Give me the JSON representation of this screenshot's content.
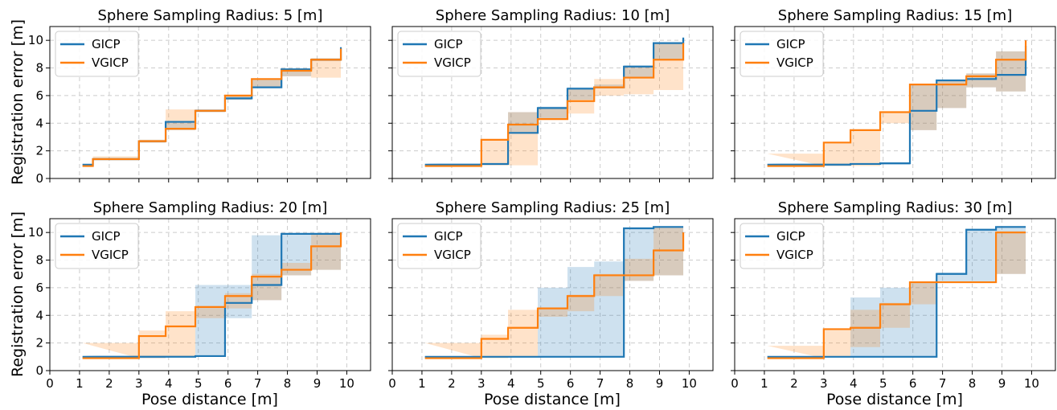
{
  "figure": {
    "ylabel": "Registration error [m]",
    "xlabel": "Pose distance [m]",
    "colors": {
      "GICP": "#1f77b4",
      "VGICP": "#ff7f0e"
    },
    "x_ticks": [
      "0",
      "1",
      "2",
      "3",
      "4",
      "5",
      "6",
      "7",
      "8",
      "9",
      "10"
    ],
    "y_ticks": [
      "0",
      "2",
      "4",
      "6",
      "8",
      "10"
    ],
    "xlim": [
      0,
      10.8
    ],
    "ylim": [
      0,
      11
    ],
    "grid": true,
    "legend_placement": "top-left"
  },
  "chart_data": [
    {
      "type": "line",
      "title": "Sphere Sampling Radius: 5 [m]",
      "steps": [
        1.1,
        1.45,
        2,
        3,
        3.9,
        4.9,
        5.9,
        6.8,
        7.8,
        8.8,
        9.8
      ],
      "series": [
        {
          "name": "GICP",
          "values": [
            1.0,
            1.4,
            1.4,
            2.7,
            4.1,
            4.9,
            5.8,
            6.6,
            7.9,
            8.6,
            9.5
          ],
          "lower": [
            0.9,
            1.3,
            1.3,
            2.6,
            3.5,
            4.8,
            5.7,
            6.6,
            7.4,
            8.5,
            9.4
          ],
          "upper": [
            1.0,
            1.5,
            1.5,
            2.8,
            4.1,
            5.0,
            6.0,
            7.2,
            7.9,
            8.7,
            9.5
          ]
        },
        {
          "name": "VGICP",
          "values": [
            0.9,
            1.4,
            1.4,
            2.7,
            3.6,
            4.9,
            6.0,
            7.2,
            7.8,
            8.6,
            9.4
          ],
          "lower": [
            0.9,
            1.3,
            1.3,
            2.6,
            3.5,
            4.8,
            5.7,
            6.6,
            7.4,
            7.3,
            7.3
          ],
          "upper": [
            1.0,
            1.6,
            1.6,
            2.8,
            5.0,
            5.0,
            6.0,
            7.2,
            7.9,
            8.7,
            9.5
          ]
        }
      ]
    },
    {
      "type": "line",
      "title": "Sphere Sampling Radius: 10 [m]",
      "steps": [
        1.1,
        3,
        3.9,
        4.9,
        5.9,
        6.8,
        7.8,
        8.8,
        9.8
      ],
      "series": [
        {
          "name": "GICP",
          "values": [
            1.0,
            1.05,
            3.3,
            5.1,
            6.5,
            6.6,
            8.1,
            9.8,
            10.2
          ],
          "lower": [
            0.9,
            0.95,
            3.3,
            4.3,
            5.7,
            6.6,
            7.3,
            8.6,
            9.8
          ],
          "upper": [
            1.1,
            1.1,
            4.8,
            5.2,
            6.6,
            6.8,
            8.2,
            9.8,
            10.3
          ]
        },
        {
          "name": "VGICP",
          "values": [
            0.9,
            2.8,
            3.9,
            4.3,
            5.6,
            6.6,
            7.3,
            8.6,
            9.8
          ],
          "lower": [
            0.9,
            0.95,
            0.95,
            4.3,
            4.7,
            6.0,
            6.1,
            6.4,
            6.8
          ],
          "upper": [
            1.0,
            2.8,
            4.8,
            5.1,
            6.5,
            7.2,
            8.1,
            9.8,
            10.3
          ]
        }
      ]
    },
    {
      "type": "line",
      "title": "Sphere Sampling Radius: 15 [m]",
      "steps": [
        1.1,
        3,
        3.9,
        4.9,
        5.9,
        6.8,
        7.8,
        8.8,
        9.8
      ],
      "series": [
        {
          "name": "GICP",
          "values": [
            1.0,
            1.0,
            1.05,
            1.1,
            4.9,
            7.1,
            7.2,
            7.5,
            9.6
          ],
          "lower": [
            0.9,
            0.9,
            1.0,
            1.0,
            3.5,
            5.1,
            6.6,
            6.3,
            8.6
          ],
          "upper": [
            1.1,
            1.1,
            1.1,
            1.1,
            6.8,
            7.1,
            7.6,
            9.2,
            10.0
          ]
        },
        {
          "name": "VGICP",
          "values": [
            0.9,
            2.6,
            3.5,
            4.8,
            6.8,
            6.8,
            7.4,
            8.6,
            10.0
          ],
          "lower": [
            0.9,
            0.9,
            0.9,
            4.0,
            3.5,
            5.1,
            6.6,
            6.3,
            8.6
          ],
          "upper": [
            1.8,
            2.6,
            3.5,
            4.8,
            6.8,
            7.1,
            7.6,
            9.2,
            10.0
          ]
        }
      ]
    },
    {
      "type": "line",
      "title": "Sphere Sampling Radius: 20 [m]",
      "steps": [
        1.1,
        3,
        3.9,
        4.9,
        5.9,
        6.8,
        7.8,
        8.8,
        9.8
      ],
      "series": [
        {
          "name": "GICP",
          "values": [
            1.0,
            1.0,
            1.0,
            1.05,
            4.9,
            6.2,
            9.9,
            9.9,
            10.0
          ],
          "lower": [
            0.9,
            0.9,
            1.0,
            1.0,
            3.8,
            5.1,
            6.9,
            7.3,
            8.8
          ],
          "upper": [
            1.1,
            1.1,
            1.1,
            6.2,
            6.2,
            9.8,
            9.9,
            9.9,
            10.0
          ]
        },
        {
          "name": "VGICP",
          "values": [
            0.9,
            2.5,
            3.2,
            4.6,
            5.4,
            6.8,
            7.3,
            9.0,
            10.0
          ],
          "lower": [
            0.9,
            0.9,
            1.0,
            3.8,
            4.5,
            5.1,
            6.9,
            7.3,
            8.8
          ],
          "upper": [
            2.0,
            2.9,
            4.3,
            4.7,
            5.6,
            7.0,
            7.8,
            9.9,
            10.0
          ]
        }
      ]
    },
    {
      "type": "line",
      "title": "Sphere Sampling Radius: 25 [m]",
      "steps": [
        1.1,
        3,
        3.9,
        4.9,
        5.9,
        6.8,
        7.8,
        8.8,
        9.8
      ],
      "series": [
        {
          "name": "GICP",
          "values": [
            1.0,
            1.0,
            1.0,
            1.0,
            1.0,
            1.0,
            10.3,
            10.4,
            10.4
          ],
          "lower": [
            1.0,
            1.0,
            1.0,
            1.0,
            1.0,
            1.0,
            6.5,
            6.9,
            6.9
          ],
          "upper": [
            1.0,
            1.0,
            1.0,
            6.0,
            7.5,
            7.9,
            10.3,
            10.4,
            10.4
          ]
        },
        {
          "name": "VGICP",
          "values": [
            0.9,
            2.3,
            3.1,
            4.5,
            5.4,
            6.9,
            6.9,
            8.7,
            10.0
          ],
          "lower": [
            0.9,
            0.9,
            1.0,
            3.9,
            4.3,
            5.4,
            6.5,
            6.9,
            6.9
          ],
          "upper": [
            2.0,
            2.6,
            4.4,
            4.6,
            5.5,
            7.0,
            8.1,
            10.4,
            10.4
          ]
        }
      ]
    },
    {
      "type": "line",
      "title": "Sphere Sampling Radius: 30 [m]",
      "steps": [
        1.1,
        3,
        3.9,
        4.9,
        5.9,
        6.8,
        7.8,
        8.8,
        9.8
      ],
      "series": [
        {
          "name": "GICP",
          "values": [
            1.0,
            1.0,
            1.0,
            1.0,
            1.0,
            7.0,
            10.2,
            10.4,
            10.4
          ],
          "lower": [
            1.0,
            1.0,
            1.0,
            1.0,
            1.0,
            6.4,
            6.4,
            7.0,
            7.0
          ],
          "upper": [
            1.0,
            1.0,
            5.3,
            6.0,
            6.4,
            7.1,
            10.2,
            10.4,
            10.4
          ]
        },
        {
          "name": "VGICP",
          "values": [
            0.9,
            3.0,
            3.1,
            4.8,
            6.4,
            6.4,
            6.4,
            10.0,
            10.0
          ],
          "lower": [
            0.9,
            1.0,
            1.7,
            3.1,
            4.8,
            6.4,
            6.4,
            7.0,
            8.1
          ],
          "upper": [
            1.8,
            3.0,
            4.4,
            4.9,
            6.4,
            6.4,
            6.4,
            10.1,
            10.1
          ]
        }
      ]
    }
  ]
}
